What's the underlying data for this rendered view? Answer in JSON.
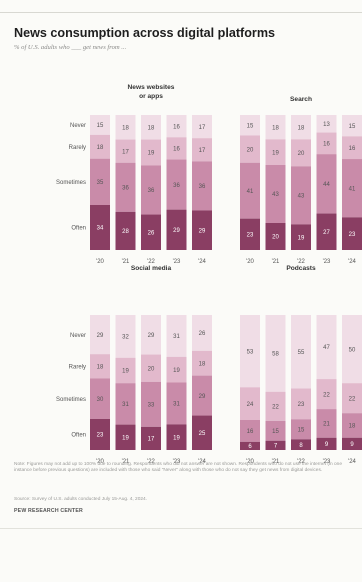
{
  "header": {
    "title": "News consumption across digital platforms",
    "subtitle": "% of U.S. adults who ___ get news from ..."
  },
  "colors": {
    "never": "#f0dde6",
    "rarely": "#e2b9cc",
    "sometimes": "#c98ba9",
    "often": "#8a3e63",
    "label_dark": "#555555",
    "label_light": "#ffffff"
  },
  "chart_data": [
    {
      "type": "bar",
      "stacked": true,
      "title": "News websites or apps",
      "title_lines": [
        "News websites",
        "or apps"
      ],
      "categories": [
        "'20",
        "'21",
        "'22",
        "'23",
        "'24"
      ],
      "series": [
        {
          "name": "Never",
          "values": [
            15,
            18,
            18,
            16,
            17
          ]
        },
        {
          "name": "Rarely",
          "values": [
            18,
            17,
            19,
            16,
            17
          ]
        },
        {
          "name": "Sometimes",
          "values": [
            35,
            36,
            36,
            36,
            36
          ]
        },
        {
          "name": "Often",
          "values": [
            34,
            28,
            26,
            29,
            29
          ]
        }
      ],
      "show_row_labels": true
    },
    {
      "type": "bar",
      "stacked": true,
      "title": "Search",
      "title_lines": [
        "Search"
      ],
      "categories": [
        "'20",
        "'21",
        "'22",
        "'23",
        "'24"
      ],
      "series": [
        {
          "name": "Never",
          "values": [
            15,
            18,
            18,
            13,
            15
          ]
        },
        {
          "name": "Rarely",
          "values": [
            20,
            19,
            20,
            16,
            16
          ]
        },
        {
          "name": "Sometimes",
          "values": [
            41,
            43,
            43,
            44,
            41
          ]
        },
        {
          "name": "Often",
          "values": [
            23,
            20,
            19,
            27,
            23
          ]
        }
      ],
      "show_row_labels": false
    },
    {
      "type": "bar",
      "stacked": true,
      "title": "Social media",
      "title_lines": [
        "Social media"
      ],
      "categories": [
        "'20",
        "'21",
        "'22",
        "'23",
        "'24"
      ],
      "series": [
        {
          "name": "Never",
          "values": [
            29,
            32,
            29,
            31,
            26
          ]
        },
        {
          "name": "Rarely",
          "values": [
            18,
            19,
            20,
            19,
            18
          ]
        },
        {
          "name": "Sometimes",
          "values": [
            30,
            31,
            33,
            31,
            29
          ]
        },
        {
          "name": "Often",
          "values": [
            23,
            19,
            17,
            19,
            25
          ]
        }
      ],
      "show_row_labels": true
    },
    {
      "type": "bar",
      "stacked": true,
      "title": "Podcasts",
      "title_lines": [
        "Podcasts"
      ],
      "categories": [
        "'20",
        "'21",
        "'22",
        "'23",
        "'24"
      ],
      "series": [
        {
          "name": "Never",
          "values": [
            53,
            58,
            55,
            47,
            50
          ]
        },
        {
          "name": "Rarely",
          "values": [
            24,
            22,
            23,
            22,
            22
          ]
        },
        {
          "name": "Sometimes",
          "values": [
            16,
            15,
            15,
            21,
            18
          ]
        },
        {
          "name": "Often",
          "values": [
            6,
            7,
            8,
            9,
            9
          ]
        }
      ],
      "show_row_labels": false
    }
  ],
  "footer": {
    "note": "Note: Figures may not add up to 100% due to rounding. Respondents who did not answer are not shown. Respondents who do not use the internet (in one instance before previous questions) are included with those who said \"Never\" along with those who do not say they get news from digital devices.",
    "source": "Source: Survey of U.S. adults conducted July 15-Aug. 4, 2024.",
    "brand": "PEW RESEARCH CENTER"
  }
}
